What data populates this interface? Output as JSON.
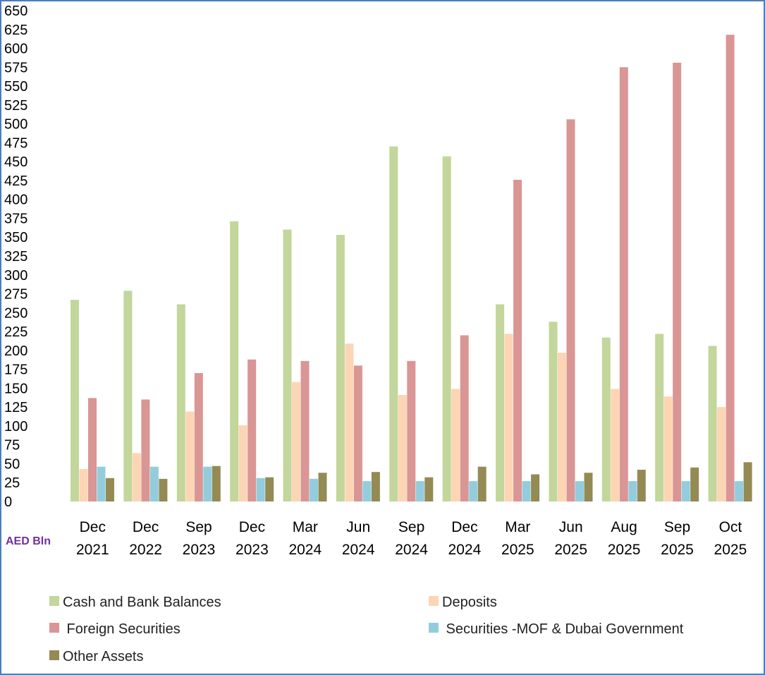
{
  "chart_data": {
    "type": "bar",
    "title": "",
    "ylabel": "",
    "xlabel": "",
    "unit_label": "AED Bln",
    "ylim": [
      0,
      650
    ],
    "ytick_step": 25,
    "grid": false,
    "legend_position": "bottom",
    "categories": [
      [
        "Dec",
        "2021"
      ],
      [
        "Dec",
        "2022"
      ],
      [
        "Sep",
        "2023"
      ],
      [
        "Dec",
        "2023"
      ],
      [
        "Mar",
        "2024"
      ],
      [
        "Jun",
        "2024"
      ],
      [
        "Sep",
        "2024"
      ],
      [
        "Dec",
        "2024"
      ],
      [
        "Mar",
        "2025"
      ],
      [
        "Jun",
        "2025"
      ],
      [
        "Aug",
        "2025"
      ],
      [
        "Sep",
        "2025"
      ],
      [
        "Oct",
        "2025"
      ]
    ],
    "series": [
      {
        "name": "Cash and Bank Balances",
        "color": "#c3d69b",
        "values": [
          267,
          279,
          261,
          371,
          360,
          353,
          470,
          457,
          261,
          238,
          217,
          222,
          206
        ]
      },
      {
        "name": "Deposits",
        "color": "#fcd5b5",
        "values": [
          43,
          64,
          119,
          101,
          158,
          209,
          141,
          149,
          222,
          197,
          149,
          139,
          125
        ]
      },
      {
        "name": "Foreign Securities",
        "color": "#d99694",
        "values": [
          137,
          135,
          170,
          188,
          186,
          180,
          186,
          220,
          426,
          506,
          575,
          581,
          618
        ]
      },
      {
        "name": "Securities -MOF & Dubai Government",
        "color": "#93cddd",
        "values": [
          46,
          46,
          46,
          31,
          30,
          27,
          27,
          27,
          27,
          27,
          27,
          27,
          27
        ]
      },
      {
        "name": "Other Assets",
        "color": "#948a54",
        "values": [
          31,
          30,
          47,
          32,
          38,
          39,
          32,
          46,
          36,
          38,
          42,
          45,
          52
        ]
      }
    ],
    "legend": [
      {
        "label": "Cash and Bank Balances",
        "series": 0
      },
      {
        "label": "Deposits",
        "series": 1
      },
      {
        "label": " Foreign Securities",
        "series": 2
      },
      {
        "label": " Securities -MOF & Dubai Government",
        "series": 3
      },
      {
        "label": "Other Assets",
        "series": 4
      }
    ]
  }
}
